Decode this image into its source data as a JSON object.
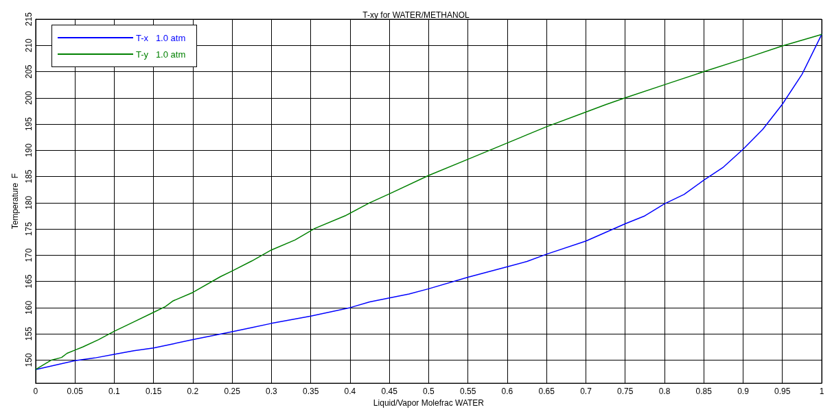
{
  "chart_data": {
    "type": "line",
    "title": "T-xy for WATER/METHANOL",
    "xlabel": "Liquid/Vapor Molefrac WATER",
    "ylabel": "Temperature  F",
    "xlim": [
      0,
      1
    ],
    "ylim": [
      145.6,
      215
    ],
    "xticks": [
      0,
      0.05,
      0.1,
      0.15,
      0.2,
      0.25,
      0.3,
      0.35,
      0.4,
      0.45,
      0.5,
      0.55,
      0.6,
      0.65,
      0.7,
      0.75,
      0.8,
      0.85,
      0.9,
      0.95,
      1
    ],
    "yticks": [
      150,
      155,
      160,
      165,
      170,
      175,
      180,
      185,
      190,
      195,
      200,
      205,
      210,
      215
    ],
    "grid": true,
    "legend": "top left",
    "marker": "none",
    "line_style": "solid",
    "series": [
      {
        "name": "T-x   1.0 atm",
        "color": "#0000ff",
        "x": [
          0,
          0.05,
          0.075,
          0.1,
          0.125,
          0.15,
          0.175,
          0.2,
          0.25,
          0.275,
          0.3,
          0.35,
          0.4,
          0.425,
          0.475,
          0.5,
          0.55,
          0.6,
          0.625,
          0.65,
          0.7,
          0.75,
          0.775,
          0.8,
          0.825,
          0.85,
          0.875,
          0.9,
          0.925,
          0.95,
          0.975,
          1
        ],
        "values": [
          148.2,
          149.9,
          150.4,
          151.1,
          151.8,
          152.3,
          153.1,
          153.9,
          155.4,
          156.2,
          157,
          158.4,
          160,
          161.1,
          162.6,
          163.6,
          165.8,
          167.8,
          168.8,
          170.2,
          172.7,
          176,
          177.5,
          179.8,
          181.6,
          184.3,
          186.8,
          190.2,
          194,
          198.8,
          204.5,
          212.1
        ]
      },
      {
        "name": "T-y   1.0 atm",
        "color": "#008000",
        "x": [
          0,
          0.02,
          0.033,
          0.04,
          0.05,
          0.06,
          0.08,
          0.1,
          0.125,
          0.15,
          0.165,
          0.175,
          0.2,
          0.235,
          0.25,
          0.275,
          0.3,
          0.33,
          0.355,
          0.395,
          0.425,
          0.45,
          0.5,
          0.55,
          0.6,
          0.65,
          0.7,
          0.725,
          0.75,
          0.8,
          0.85,
          0.9,
          0.95,
          1
        ],
        "values": [
          148.2,
          150,
          150.5,
          151.3,
          151.9,
          152.5,
          153.9,
          155.5,
          157.3,
          159.1,
          160.2,
          161.3,
          162.9,
          165.9,
          167,
          168.9,
          171,
          172.9,
          175.1,
          177.6,
          180,
          181.7,
          185.2,
          188.3,
          191.4,
          194.5,
          197.3,
          198.7,
          200,
          202.5,
          205,
          207.4,
          209.9,
          212.1
        ]
      }
    ]
  }
}
